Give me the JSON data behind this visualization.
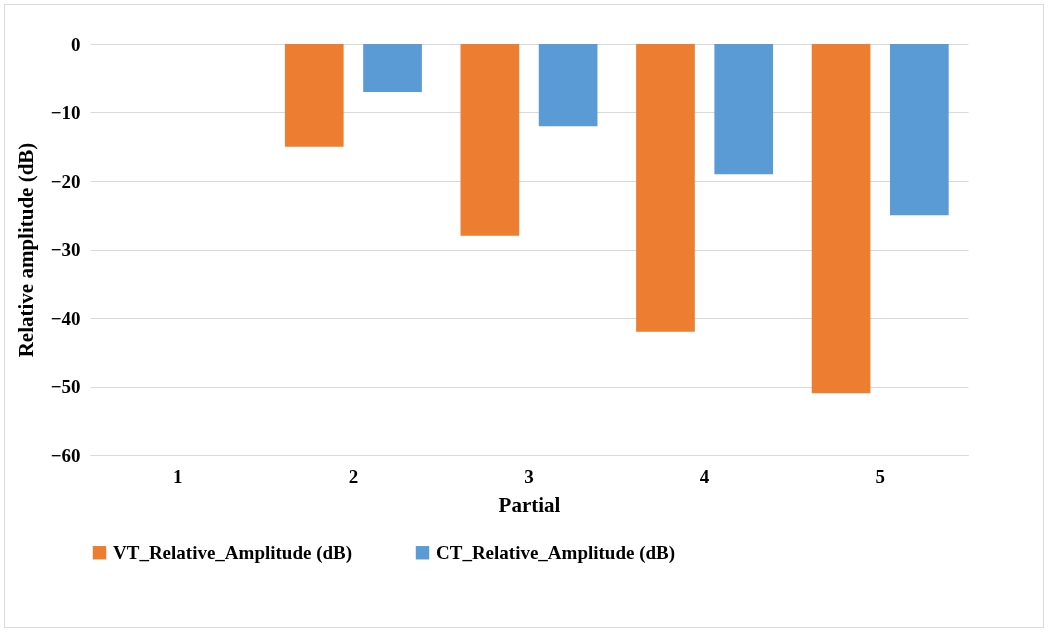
{
  "chart_data": {
    "type": "bar",
    "xlabel": "Partial",
    "ylabel": "Relative amplitude (dB)",
    "categories": [
      "1",
      "2",
      "3",
      "4",
      "5"
    ],
    "series": [
      {
        "name": "VT_Relative_Amplitude (dB)",
        "color": "#ed7d31",
        "values": [
          0,
          -15,
          -28,
          -42,
          -51
        ]
      },
      {
        "name": "CT_Relative_Amplitude (dB)",
        "color": "#5b9bd5",
        "values": [
          0,
          -7,
          -12,
          -19,
          -25
        ]
      }
    ],
    "ylim": [
      -60,
      0
    ],
    "yticks": [
      -60,
      -50,
      -40,
      -30,
      -20,
      -10,
      0
    ],
    "grid": "y",
    "legend": "bottom"
  }
}
